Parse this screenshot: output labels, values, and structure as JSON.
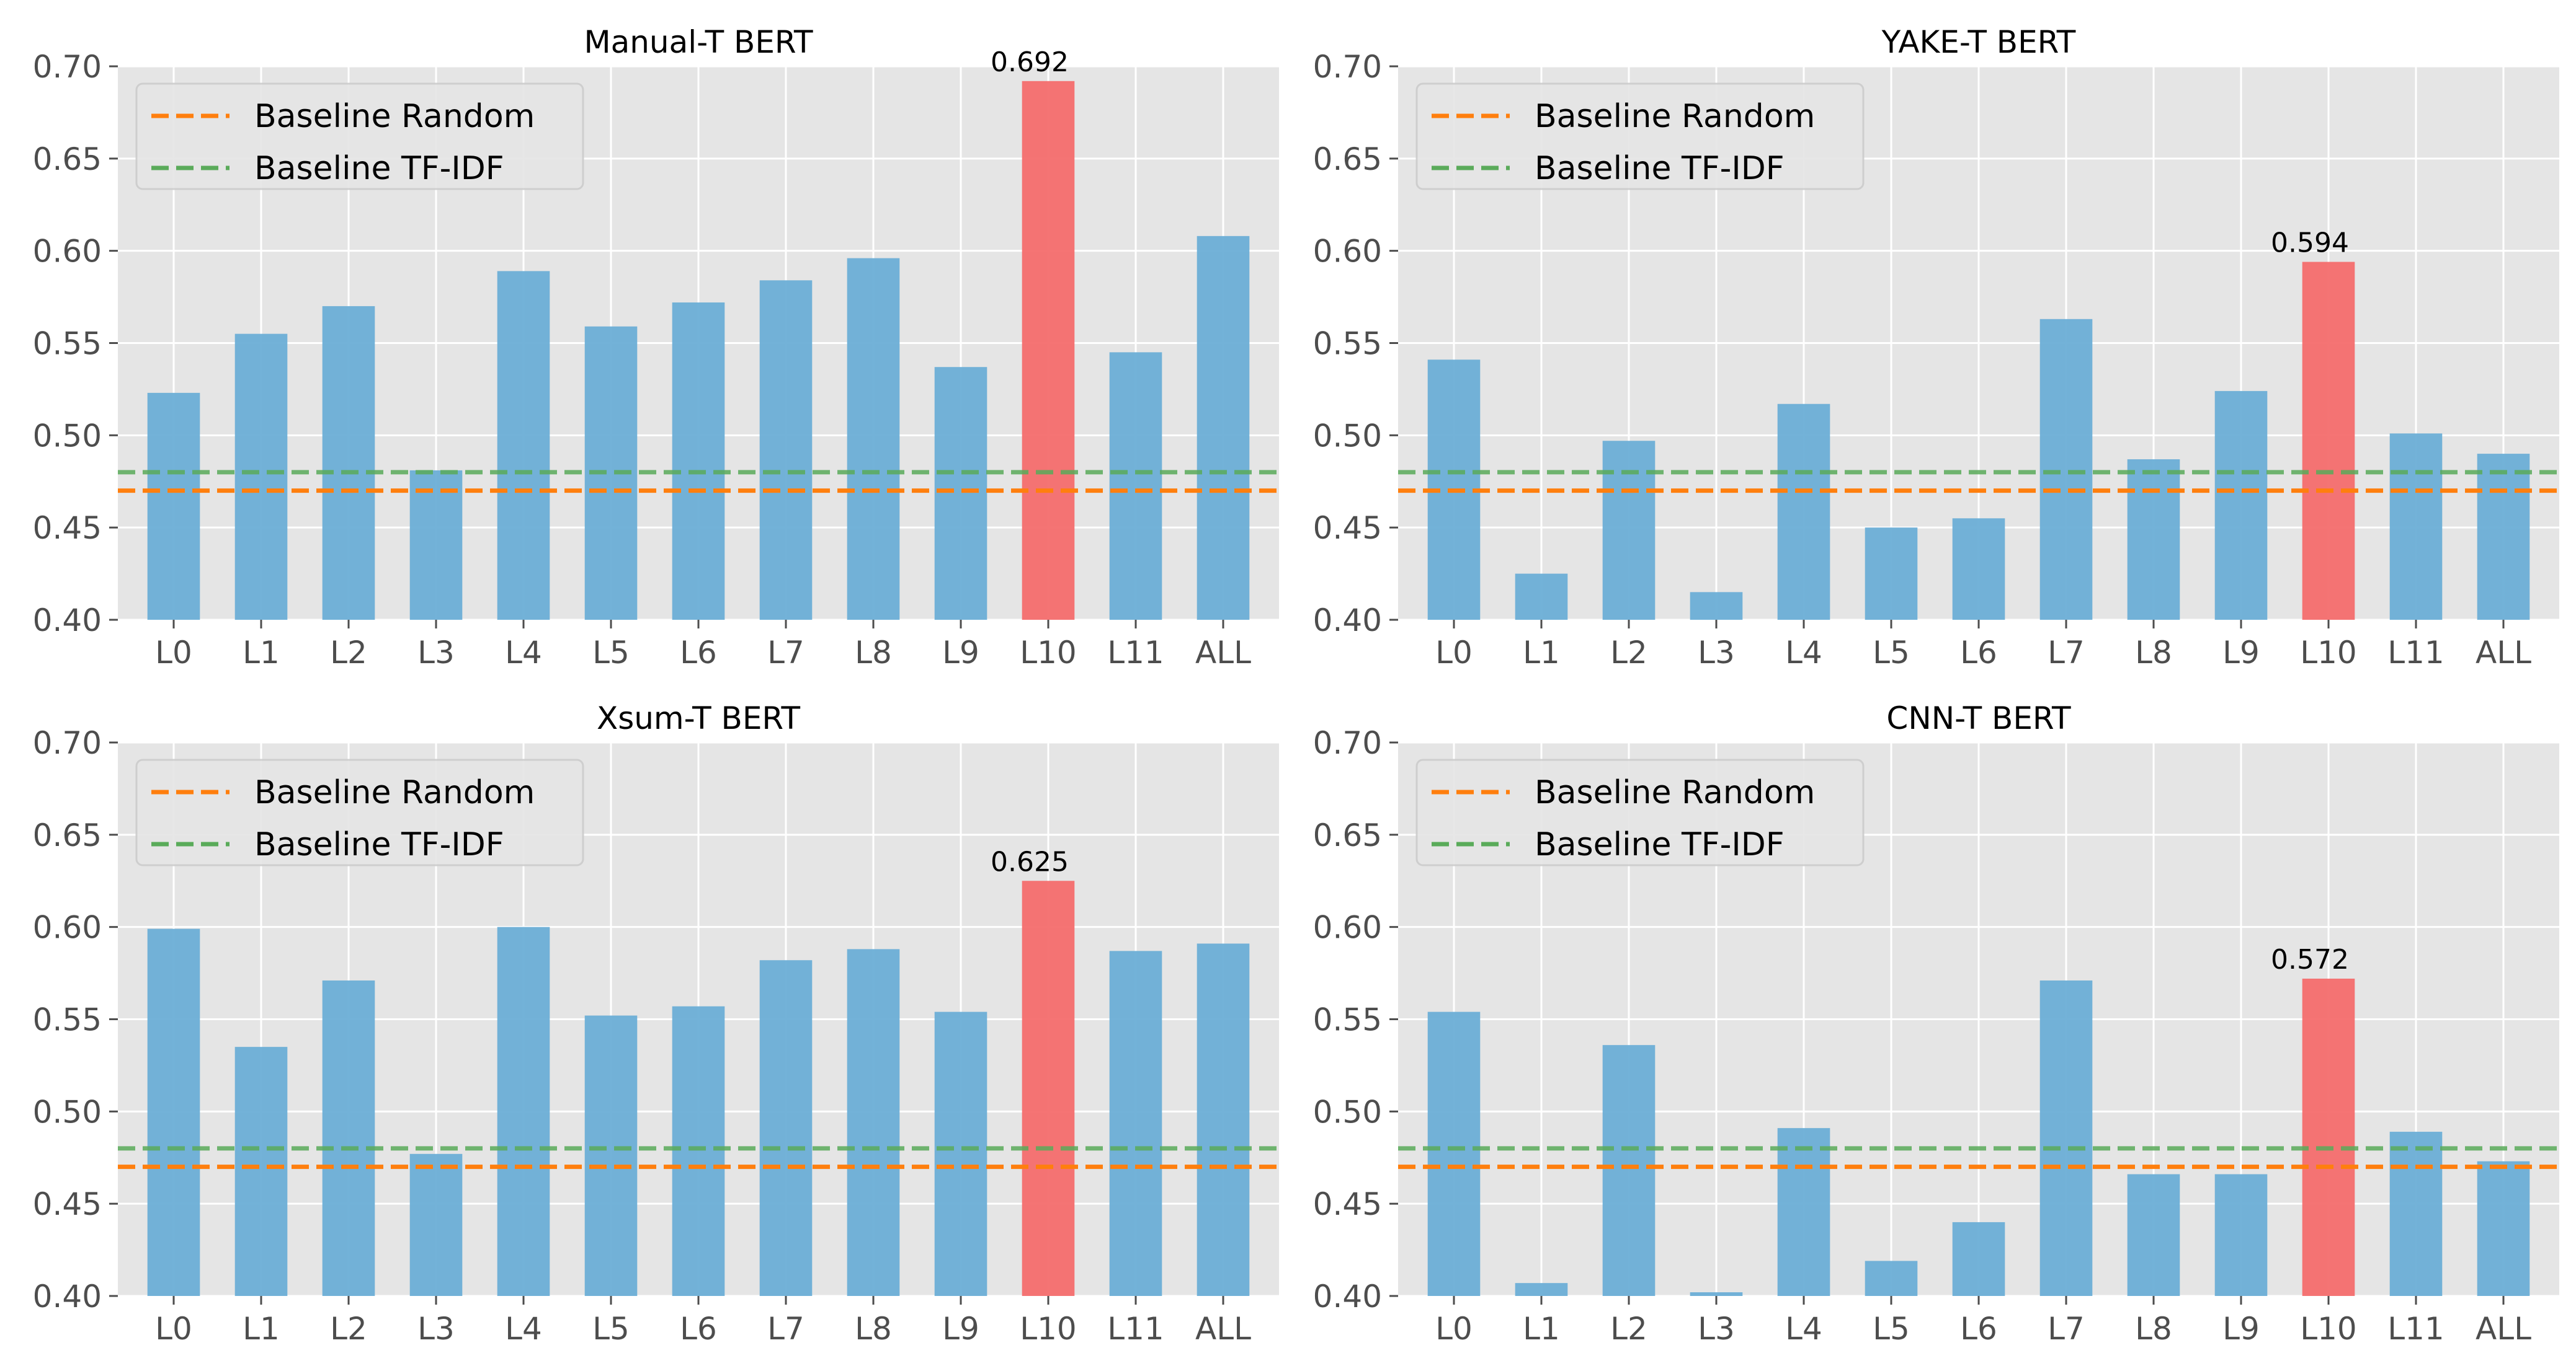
{
  "colors": {
    "bar": "#6baed6",
    "highlight": "#f46d6d",
    "baseline_random": "#ff7f0e",
    "baseline_tfidf": "#5aab5a",
    "plot_bg": "#e5e5e5",
    "grid": "#ffffff"
  },
  "chart_data": [
    {
      "type": "bar",
      "title": "Manual-T BERT",
      "categories": [
        "L0",
        "L1",
        "L2",
        "L3",
        "L4",
        "L5",
        "L6",
        "L7",
        "L8",
        "L9",
        "L10",
        "L11",
        "ALL"
      ],
      "values": [
        0.523,
        0.555,
        0.57,
        0.481,
        0.589,
        0.559,
        0.572,
        0.584,
        0.596,
        0.537,
        0.692,
        0.545,
        0.608
      ],
      "highlight_index": 10,
      "highlight_label": "0.692",
      "ylim": [
        0.4,
        0.7
      ],
      "yticks": [
        "0.40",
        "0.45",
        "0.50",
        "0.55",
        "0.60",
        "0.65",
        "0.70"
      ],
      "baselines": [
        {
          "name": "Baseline Random",
          "value": 0.47
        },
        {
          "name": "Baseline TF-IDF",
          "value": 0.48
        }
      ],
      "legend": "top-left",
      "grid": true
    },
    {
      "type": "bar",
      "title": "YAKE-T BERT",
      "categories": [
        "L0",
        "L1",
        "L2",
        "L3",
        "L4",
        "L5",
        "L6",
        "L7",
        "L8",
        "L9",
        "L10",
        "L11",
        "ALL"
      ],
      "values": [
        0.541,
        0.425,
        0.497,
        0.415,
        0.517,
        0.45,
        0.455,
        0.563,
        0.487,
        0.524,
        0.594,
        0.501,
        0.49
      ],
      "highlight_index": 10,
      "highlight_label": "0.594",
      "ylim": [
        0.4,
        0.7
      ],
      "yticks": [
        "0.40",
        "0.45",
        "0.50",
        "0.55",
        "0.60",
        "0.65",
        "0.70"
      ],
      "baselines": [
        {
          "name": "Baseline Random",
          "value": 0.47
        },
        {
          "name": "Baseline TF-IDF",
          "value": 0.48
        }
      ],
      "legend": "top-left",
      "grid": true
    },
    {
      "type": "bar",
      "title": "Xsum-T BERT",
      "categories": [
        "L0",
        "L1",
        "L2",
        "L3",
        "L4",
        "L5",
        "L6",
        "L7",
        "L8",
        "L9",
        "L10",
        "L11",
        "ALL"
      ],
      "values": [
        0.599,
        0.535,
        0.571,
        0.477,
        0.6,
        0.552,
        0.557,
        0.582,
        0.588,
        0.554,
        0.625,
        0.587,
        0.591
      ],
      "highlight_index": 10,
      "highlight_label": "0.625",
      "ylim": [
        0.4,
        0.7
      ],
      "yticks": [
        "0.40",
        "0.45",
        "0.50",
        "0.55",
        "0.60",
        "0.65",
        "0.70"
      ],
      "baselines": [
        {
          "name": "Baseline Random",
          "value": 0.47
        },
        {
          "name": "Baseline TF-IDF",
          "value": 0.48
        }
      ],
      "legend": "top-left",
      "grid": true
    },
    {
      "type": "bar",
      "title": "CNN-T BERT",
      "categories": [
        "L0",
        "L1",
        "L2",
        "L3",
        "L4",
        "L5",
        "L6",
        "L7",
        "L8",
        "L9",
        "L10",
        "L11",
        "ALL"
      ],
      "values": [
        0.554,
        0.407,
        0.536,
        0.402,
        0.491,
        0.419,
        0.44,
        0.571,
        0.466,
        0.466,
        0.572,
        0.489,
        0.473
      ],
      "highlight_index": 10,
      "highlight_label": "0.572",
      "ylim": [
        0.4,
        0.7
      ],
      "yticks": [
        "0.40",
        "0.45",
        "0.50",
        "0.55",
        "0.60",
        "0.65",
        "0.70"
      ],
      "baselines": [
        {
          "name": "Baseline Random",
          "value": 0.47
        },
        {
          "name": "Baseline TF-IDF",
          "value": 0.48
        }
      ],
      "legend": "top-left",
      "grid": true
    }
  ]
}
